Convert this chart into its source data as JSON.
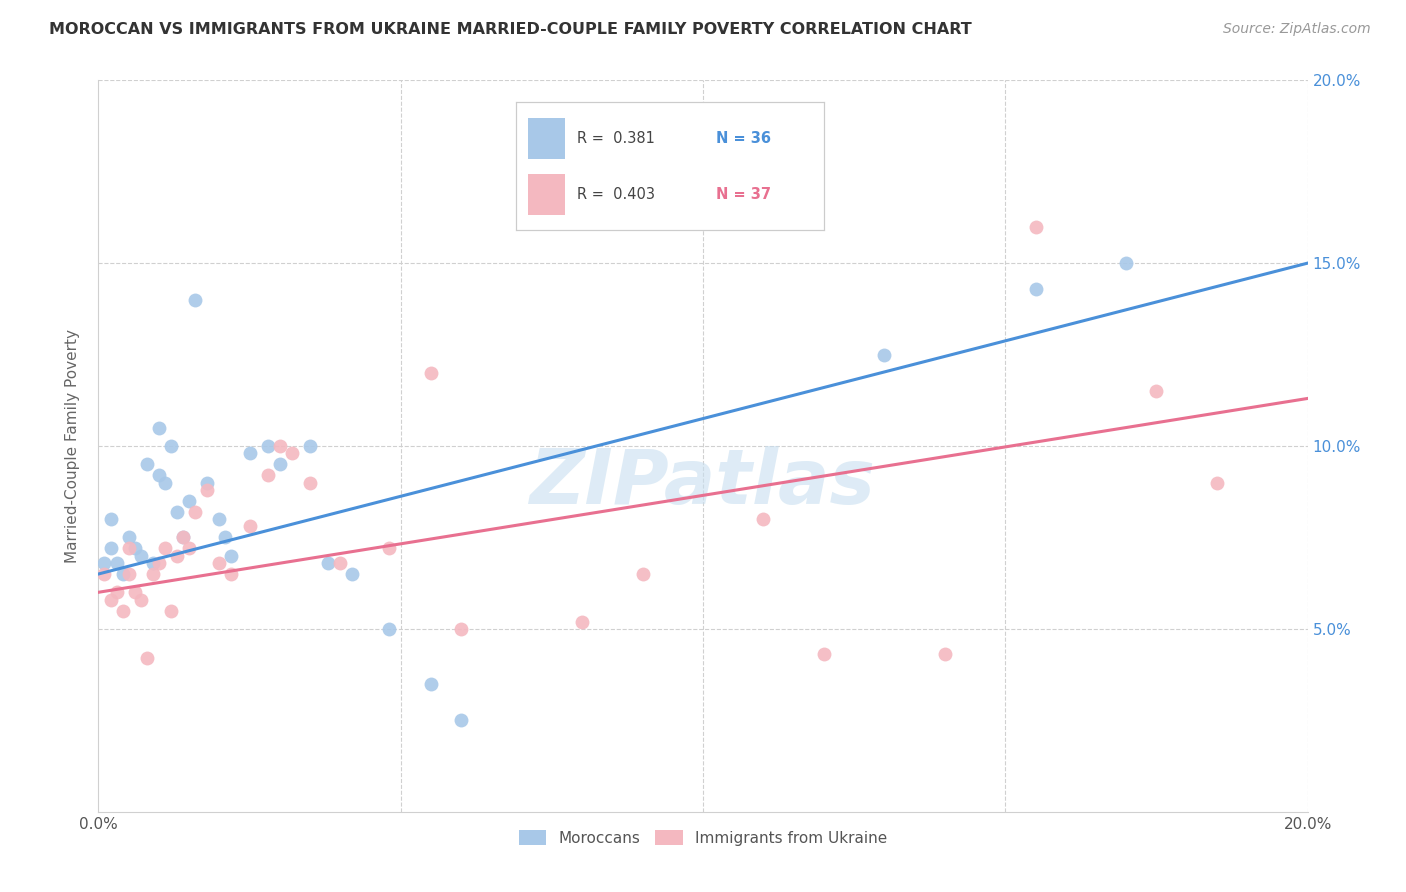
{
  "title": "MOROCCAN VS IMMIGRANTS FROM UKRAINE MARRIED-COUPLE FAMILY POVERTY CORRELATION CHART",
  "source": "Source: ZipAtlas.com",
  "ylabel": "Married-Couple Family Poverty",
  "xmin": 0.0,
  "xmax": 0.2,
  "ymin": 0.0,
  "ymax": 0.2,
  "yticks": [
    0.05,
    0.1,
    0.15,
    0.2
  ],
  "ytick_labels": [
    "5.0%",
    "10.0%",
    "15.0%",
    "20.0%"
  ],
  "blue_color": "#a8c8e8",
  "pink_color": "#f4b8c0",
  "blue_line_color": "#4a90d9",
  "pink_line_color": "#e87090",
  "watermark": "ZIPatlas",
  "moroccan_x": [
    0.001,
    0.002,
    0.002,
    0.003,
    0.004,
    0.005,
    0.006,
    0.007,
    0.008,
    0.009,
    0.01,
    0.01,
    0.011,
    0.012,
    0.013,
    0.014,
    0.015,
    0.016,
    0.018,
    0.02,
    0.021,
    0.022,
    0.025,
    0.028,
    0.03,
    0.035,
    0.038,
    0.042,
    0.048,
    0.055,
    0.06,
    0.13,
    0.155,
    0.17
  ],
  "moroccan_y": [
    0.068,
    0.072,
    0.08,
    0.068,
    0.065,
    0.075,
    0.072,
    0.07,
    0.095,
    0.068,
    0.092,
    0.105,
    0.09,
    0.1,
    0.082,
    0.075,
    0.085,
    0.14,
    0.09,
    0.08,
    0.075,
    0.07,
    0.098,
    0.1,
    0.095,
    0.1,
    0.068,
    0.065,
    0.05,
    0.035,
    0.025,
    0.125,
    0.143,
    0.15
  ],
  "ukraine_x": [
    0.001,
    0.002,
    0.003,
    0.004,
    0.005,
    0.005,
    0.006,
    0.007,
    0.008,
    0.009,
    0.01,
    0.011,
    0.012,
    0.013,
    0.014,
    0.015,
    0.016,
    0.018,
    0.02,
    0.022,
    0.025,
    0.028,
    0.03,
    0.032,
    0.035,
    0.04,
    0.048,
    0.055,
    0.06,
    0.08,
    0.09,
    0.11,
    0.12,
    0.14,
    0.155,
    0.175,
    0.185
  ],
  "ukraine_y": [
    0.065,
    0.058,
    0.06,
    0.055,
    0.065,
    0.072,
    0.06,
    0.058,
    0.042,
    0.065,
    0.068,
    0.072,
    0.055,
    0.07,
    0.075,
    0.072,
    0.082,
    0.088,
    0.068,
    0.065,
    0.078,
    0.092,
    0.1,
    0.098,
    0.09,
    0.068,
    0.072,
    0.12,
    0.05,
    0.052,
    0.065,
    0.08,
    0.043,
    0.043,
    0.16,
    0.115,
    0.09
  ],
  "blue_trend_x0": 0.0,
  "blue_trend_y0": 0.065,
  "blue_trend_x1": 0.2,
  "blue_trend_y1": 0.15,
  "pink_trend_x0": 0.0,
  "pink_trend_y0": 0.06,
  "pink_trend_x1": 0.2,
  "pink_trend_y1": 0.113
}
